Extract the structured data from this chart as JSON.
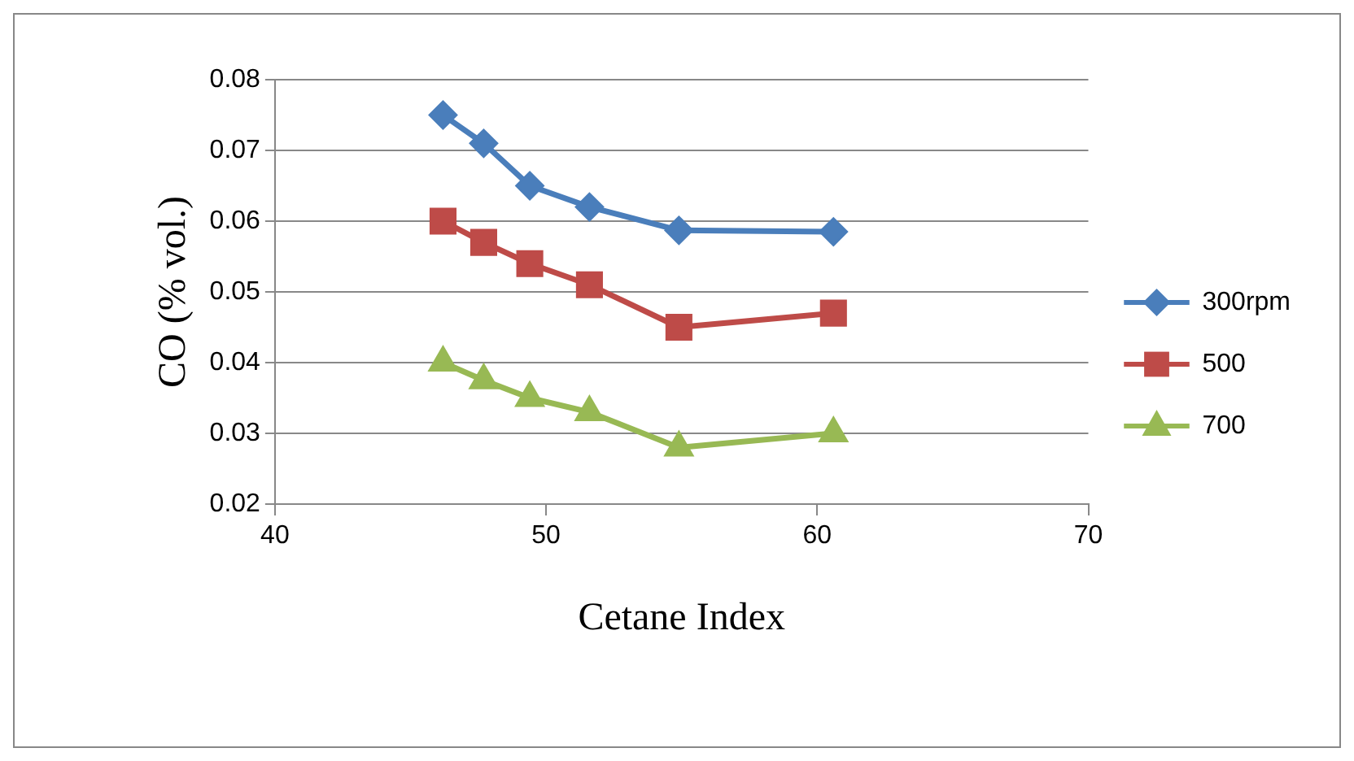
{
  "chart_data": {
    "type": "line",
    "xlabel": "Cetane Index",
    "ylabel": "CO (% vol.)",
    "x": [
      46.2,
      47.7,
      49.4,
      51.6,
      54.9,
      60.6
    ],
    "series": [
      {
        "name": "300rpm",
        "color": "#4a7ebb",
        "marker": "diamond",
        "values": [
          0.075,
          0.071,
          0.065,
          0.062,
          0.0587,
          0.0585
        ]
      },
      {
        "name": "500",
        "color": "#be4b48",
        "marker": "square",
        "values": [
          0.06,
          0.057,
          0.054,
          0.051,
          0.045,
          0.047
        ]
      },
      {
        "name": "700",
        "color": "#98b954",
        "marker": "triangle",
        "values": [
          0.04,
          0.0375,
          0.035,
          0.033,
          0.028,
          0.03
        ]
      }
    ],
    "xlim": [
      40,
      70
    ],
    "xticks": [
      40,
      50,
      60,
      70
    ],
    "ylim": [
      0.02,
      0.08
    ],
    "yticks": [
      0.02,
      0.03,
      0.04,
      0.05,
      0.06,
      0.07,
      0.08
    ],
    "grid": "y",
    "legend": "right"
  }
}
